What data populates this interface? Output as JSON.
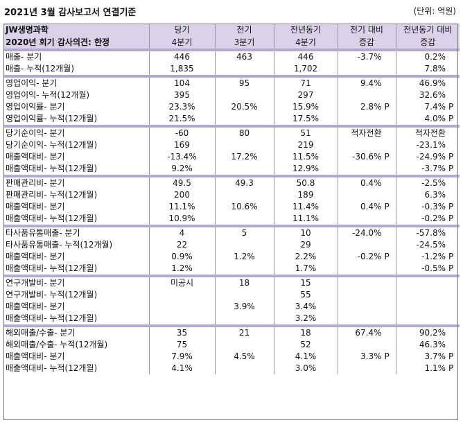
{
  "header": {
    "title": "2021년 3월 감사보고서 연결기준",
    "unit": "(단위: 억원)"
  },
  "table": {
    "company": "JW생명과학",
    "opinion": "2020년 회기 감사의견: 한정",
    "columns": [
      {
        "line1": "당기",
        "line2": "4분기"
      },
      {
        "line1": "전기",
        "line2": "3분기"
      },
      {
        "line1": "전년동기",
        "line2": "4분기"
      },
      {
        "line1": "전기 대비",
        "line2": "증감"
      },
      {
        "line1": "전년동기 대비",
        "line2": "증감"
      }
    ],
    "groups": [
      [
        {
          "label": "매출- 분기",
          "cur": "446",
          "prev": "463",
          "yoy": "446",
          "qoq": "-3.7%",
          "qoq_p": "",
          "yoy_chg": "0.2%",
          "yoy_p": ""
        },
        {
          "label": "매출- 누적(12개월)",
          "cur": "1,835",
          "prev": "",
          "yoy": "1,702",
          "qoq": "",
          "qoq_p": "",
          "yoy_chg": "7.8%",
          "yoy_p": ""
        }
      ],
      [
        {
          "label": "영업이익- 분기",
          "cur": "104",
          "prev": "95",
          "yoy": "71",
          "qoq": "9.4%",
          "qoq_p": "",
          "yoy_chg": "46.9%",
          "yoy_p": ""
        },
        {
          "label": "영업이익- 누적(12개월)",
          "cur": "395",
          "prev": "",
          "yoy": "297",
          "qoq": "",
          "qoq_p": "",
          "yoy_chg": "32.6%",
          "yoy_p": ""
        },
        {
          "label": "영업이익률- 분기",
          "cur": "23.3%",
          "prev": "20.5%",
          "yoy": "15.9%",
          "qoq": "2.8%",
          "qoq_p": "P",
          "yoy_chg": "7.4%",
          "yoy_p": "P"
        },
        {
          "label": "영업이익률- 누적(12개월)",
          "cur": "21.5%",
          "prev": "",
          "yoy": "17.5%",
          "qoq": "",
          "qoq_p": "",
          "yoy_chg": "4.0%",
          "yoy_p": "P"
        }
      ],
      [
        {
          "label": "당기순이익- 분기",
          "cur": "-60",
          "prev": "80",
          "yoy": "51",
          "qoq": "적자전환",
          "qoq_p": "",
          "yoy_chg": "적자전환",
          "yoy_p": ""
        },
        {
          "label": "당기순이익- 누적(12개월)",
          "cur": "169",
          "prev": "",
          "yoy": "219",
          "qoq": "",
          "qoq_p": "",
          "yoy_chg": "-23.1%",
          "yoy_p": ""
        },
        {
          "label": "매출액대비- 분기",
          "cur": "-13.4%",
          "prev": "17.2%",
          "yoy": "11.5%",
          "qoq": "-30.6%",
          "qoq_p": "P",
          "yoy_chg": "-24.9%",
          "yoy_p": "P"
        },
        {
          "label": "매출액대비- 누적(12개월)",
          "cur": "9.2%",
          "prev": "",
          "yoy": "12.9%",
          "qoq": "",
          "qoq_p": "",
          "yoy_chg": "-3.7%",
          "yoy_p": "P"
        }
      ],
      [
        {
          "label": "판매관리비- 분기",
          "cur": "49.5",
          "prev": "49.3",
          "yoy": "50.8",
          "qoq": "0.4%",
          "qoq_p": "",
          "yoy_chg": "-2.5%",
          "yoy_p": ""
        },
        {
          "label": "판매관리비- 누적(12개월)",
          "cur": "200",
          "prev": "",
          "yoy": "189",
          "qoq": "",
          "qoq_p": "",
          "yoy_chg": "6.3%",
          "yoy_p": ""
        },
        {
          "label": "매출액대비- 분기",
          "cur": "11.1%",
          "prev": "10.6%",
          "yoy": "11.4%",
          "qoq": "0.4%",
          "qoq_p": "P",
          "yoy_chg": "-0.3%",
          "yoy_p": "P"
        },
        {
          "label": "매출액대비- 누적(12개월)",
          "cur": "10.9%",
          "prev": "",
          "yoy": "11.1%",
          "qoq": "",
          "qoq_p": "",
          "yoy_chg": "-0.2%",
          "yoy_p": "P"
        }
      ],
      [
        {
          "label": "타사품유통매출- 분기",
          "cur": "4",
          "prev": "5",
          "yoy": "10",
          "qoq": "-24.0%",
          "qoq_p": "",
          "yoy_chg": "-57.8%",
          "yoy_p": ""
        },
        {
          "label": "타사품유통매출- 누적(12개월)",
          "cur": "22",
          "prev": "",
          "yoy": "29",
          "qoq": "",
          "qoq_p": "",
          "yoy_chg": "-24.5%",
          "yoy_p": ""
        },
        {
          "label": "매출액대비- 분기",
          "cur": "0.9%",
          "prev": "1.2%",
          "yoy": "2.2%",
          "qoq": "-0.2%",
          "qoq_p": "P",
          "yoy_chg": "-1.2%",
          "yoy_p": "P"
        },
        {
          "label": "매출액대비- 누적(12개월)",
          "cur": "1.2%",
          "prev": "",
          "yoy": "1.7%",
          "qoq": "",
          "qoq_p": "",
          "yoy_chg": "-0.5%",
          "yoy_p": "P"
        }
      ],
      [
        {
          "label": "연구개발비- 분기",
          "cur": "미공시",
          "prev": "18",
          "yoy": "15",
          "qoq": "",
          "qoq_p": "",
          "yoy_chg": "",
          "yoy_p": ""
        },
        {
          "label": "연구개발비- 누적(12개월)",
          "cur": "",
          "prev": "",
          "yoy": "55",
          "qoq": "",
          "qoq_p": "",
          "yoy_chg": "",
          "yoy_p": ""
        },
        {
          "label": "매출액대비- 분기",
          "cur": "",
          "prev": "3.9%",
          "yoy": "3.4%",
          "qoq": "",
          "qoq_p": "",
          "yoy_chg": "",
          "yoy_p": ""
        },
        {
          "label": "매출액대비- 누적(12개월)",
          "cur": "",
          "prev": "",
          "yoy": "3.2%",
          "qoq": "",
          "qoq_p": "",
          "yoy_chg": "",
          "yoy_p": ""
        }
      ],
      [
        {
          "label": "해외매출/수출- 분기",
          "cur": "35",
          "prev": "21",
          "yoy": "18",
          "qoq": "67.4%",
          "qoq_p": "",
          "yoy_chg": "90.2%",
          "yoy_p": ""
        },
        {
          "label": "해외매출/수출- 누적(12개월)",
          "cur": "75",
          "prev": "",
          "yoy": "52",
          "qoq": "",
          "qoq_p": "",
          "yoy_chg": "46.3%",
          "yoy_p": ""
        },
        {
          "label": "매출액대비- 분기",
          "cur": "7.9%",
          "prev": "4.5%",
          "yoy": "4.1%",
          "qoq": "3.3%",
          "qoq_p": "P",
          "yoy_chg": "3.7%",
          "yoy_p": "P"
        },
        {
          "label": "매출액대비- 누적(12개월)",
          "cur": "4.1%",
          "prev": "",
          "yoy": "3.0%",
          "qoq": "",
          "qoq_p": "",
          "yoy_chg": "1.1%",
          "yoy_p": "P"
        }
      ]
    ]
  }
}
